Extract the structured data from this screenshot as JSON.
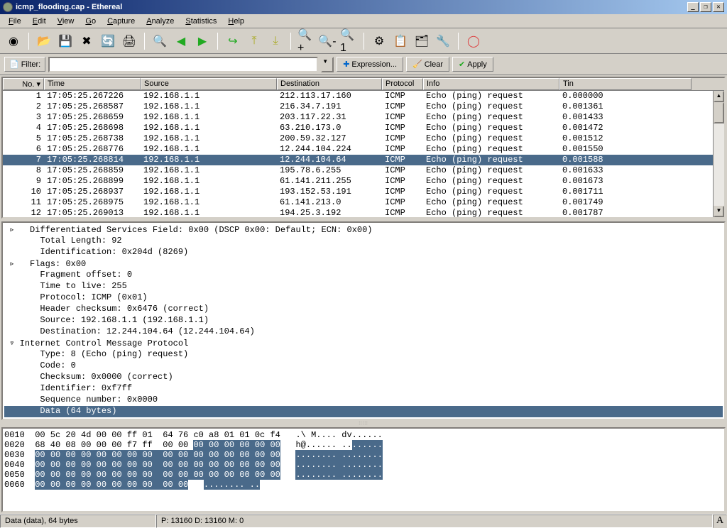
{
  "window": {
    "title": "icmp_flooding.cap - Ethereal"
  },
  "menu": {
    "items": [
      "File",
      "Edit",
      "View",
      "Go",
      "Capture",
      "Analyze",
      "Statistics",
      "Help"
    ]
  },
  "toolbar": {
    "icons": [
      "⚙",
      "📂",
      "💾",
      "✖",
      "🔄",
      "🖨",
      "🔍",
      "⬅",
      "➡",
      "↪",
      "⤴",
      "⤵",
      "🔎+",
      "🔎-",
      "🔎1",
      "⚙",
      "📋",
      "🗂",
      "🔧",
      "🛟"
    ]
  },
  "filter": {
    "label": "Filter:",
    "value": "",
    "expression_btn": "Expression...",
    "clear_btn": "Clear",
    "apply_btn": "Apply"
  },
  "packet_list": {
    "columns": [
      "No. ▾",
      "Time",
      "Source",
      "Destination",
      "Protocol",
      "Info",
      "Tin"
    ],
    "rows": [
      {
        "no": "1",
        "time": "17:05:25.267226",
        "src": "192.168.1.1",
        "dst": "212.113.17.160",
        "proto": "ICMP",
        "info": "Echo (ping) request",
        "tin": "0.000000"
      },
      {
        "no": "2",
        "time": "17:05:25.268587",
        "src": "192.168.1.1",
        "dst": "216.34.7.191",
        "proto": "ICMP",
        "info": "Echo (ping) request",
        "tin": "0.001361"
      },
      {
        "no": "3",
        "time": "17:05:25.268659",
        "src": "192.168.1.1",
        "dst": "203.117.22.31",
        "proto": "ICMP",
        "info": "Echo (ping) request",
        "tin": "0.001433"
      },
      {
        "no": "4",
        "time": "17:05:25.268698",
        "src": "192.168.1.1",
        "dst": "63.210.173.0",
        "proto": "ICMP",
        "info": "Echo (ping) request",
        "tin": "0.001472"
      },
      {
        "no": "5",
        "time": "17:05:25.268738",
        "src": "192.168.1.1",
        "dst": "200.59.32.127",
        "proto": "ICMP",
        "info": "Echo (ping) request",
        "tin": "0.001512"
      },
      {
        "no": "6",
        "time": "17:05:25.268776",
        "src": "192.168.1.1",
        "dst": "12.244.104.224",
        "proto": "ICMP",
        "info": "Echo (ping) request",
        "tin": "0.001550"
      },
      {
        "no": "7",
        "time": "17:05:25.268814",
        "src": "192.168.1.1",
        "dst": "12.244.104.64",
        "proto": "ICMP",
        "info": "Echo (ping) request",
        "tin": "0.001588",
        "selected": true
      },
      {
        "no": "8",
        "time": "17:05:25.268859",
        "src": "192.168.1.1",
        "dst": "195.78.6.255",
        "proto": "ICMP",
        "info": "Echo (ping) request",
        "tin": "0.001633"
      },
      {
        "no": "9",
        "time": "17:05:25.268899",
        "src": "192.168.1.1",
        "dst": "61.141.211.255",
        "proto": "ICMP",
        "info": "Echo (ping) request",
        "tin": "0.001673"
      },
      {
        "no": "10",
        "time": "17:05:25.268937",
        "src": "192.168.1.1",
        "dst": "193.152.53.191",
        "proto": "ICMP",
        "info": "Echo (ping) request",
        "tin": "0.001711"
      },
      {
        "no": "11",
        "time": "17:05:25.268975",
        "src": "192.168.1.1",
        "dst": "61.141.213.0",
        "proto": "ICMP",
        "info": "Echo (ping) request",
        "tin": "0.001749"
      },
      {
        "no": "12",
        "time": "17:05:25.269013",
        "src": "192.168.1.1",
        "dst": "194.25.3.192",
        "proto": "ICMP",
        "info": "Echo (ping) request",
        "tin": "0.001787"
      }
    ]
  },
  "details": {
    "lines": [
      {
        "tri": "▹",
        "indent": 1,
        "text": "Differentiated Services Field: 0x00 (DSCP 0x00: Default; ECN: 0x00)"
      },
      {
        "tri": "",
        "indent": 2,
        "text": "Total Length: 92"
      },
      {
        "tri": "",
        "indent": 2,
        "text": "Identification: 0x204d (8269)"
      },
      {
        "tri": "▹",
        "indent": 1,
        "text": "Flags: 0x00"
      },
      {
        "tri": "",
        "indent": 2,
        "text": "Fragment offset: 0"
      },
      {
        "tri": "",
        "indent": 2,
        "text": "Time to live: 255"
      },
      {
        "tri": "",
        "indent": 2,
        "text": "Protocol: ICMP (0x01)"
      },
      {
        "tri": "",
        "indent": 2,
        "text": "Header checksum: 0x6476 (correct)"
      },
      {
        "tri": "",
        "indent": 2,
        "text": "Source: 192.168.1.1 (192.168.1.1)"
      },
      {
        "tri": "",
        "indent": 2,
        "text": "Destination: 12.244.104.64 (12.244.104.64)"
      },
      {
        "tri": "▿",
        "indent": 0,
        "text": "Internet Control Message Protocol"
      },
      {
        "tri": "",
        "indent": 2,
        "text": "Type: 8 (Echo (ping) request)"
      },
      {
        "tri": "",
        "indent": 2,
        "text": "Code: 0"
      },
      {
        "tri": "",
        "indent": 2,
        "text": "Checksum: 0x0000 (correct)"
      },
      {
        "tri": "",
        "indent": 2,
        "text": "Identifier: 0xf7ff"
      },
      {
        "tri": "",
        "indent": 2,
        "text": "Sequence number: 0x0000"
      },
      {
        "tri": "",
        "indent": 2,
        "text": "Data (64 bytes)",
        "selected": true
      }
    ]
  },
  "hex": {
    "lines": [
      {
        "off": "0010",
        "hex1": "00 5c 20 4d 00 00 ff 01",
        "hex2": "64 76 c0 a8 01 01 0c f4",
        "asc": ".\\ M.... dv......",
        "hl": ""
      },
      {
        "off": "0020",
        "hex1": "68 40 08 00 00 00 f7 ff",
        "hex2": "00 00 ",
        "hex2hl": "00 00 00 00 00 00",
        "asc": "h@...... ..",
        "aschl": "......",
        "hl": "partial"
      },
      {
        "off": "0030",
        "hex1hl": "00 00 00 00 00 00 00 00",
        "hex2hl": "00 00 00 00 00 00 00 00",
        "aschl": "........ ........",
        "hl": "full"
      },
      {
        "off": "0040",
        "hex1hl": "00 00 00 00 00 00 00 00",
        "hex2hl": "00 00 00 00 00 00 00 00",
        "aschl": "........ ........",
        "hl": "full"
      },
      {
        "off": "0050",
        "hex1hl": "00 00 00 00 00 00 00 00",
        "hex2hl": "00 00 00 00 00 00 00 00",
        "aschl": "........ ........",
        "hl": "full"
      },
      {
        "off": "0060",
        "hex1hl": "00 00 00 00 00 00 00 00",
        "hex2hl": "00 00",
        "aschl": "........ ..",
        "hl": "full"
      }
    ]
  },
  "status": {
    "left": "Data (data), 64 bytes",
    "mid": "P: 13160 D: 13160 M: 0",
    "a": "A"
  },
  "colors": {
    "selection_bg": "#4a6a8a",
    "selection_fg": "#ffffff",
    "win_bg": "#d4d0c8"
  }
}
